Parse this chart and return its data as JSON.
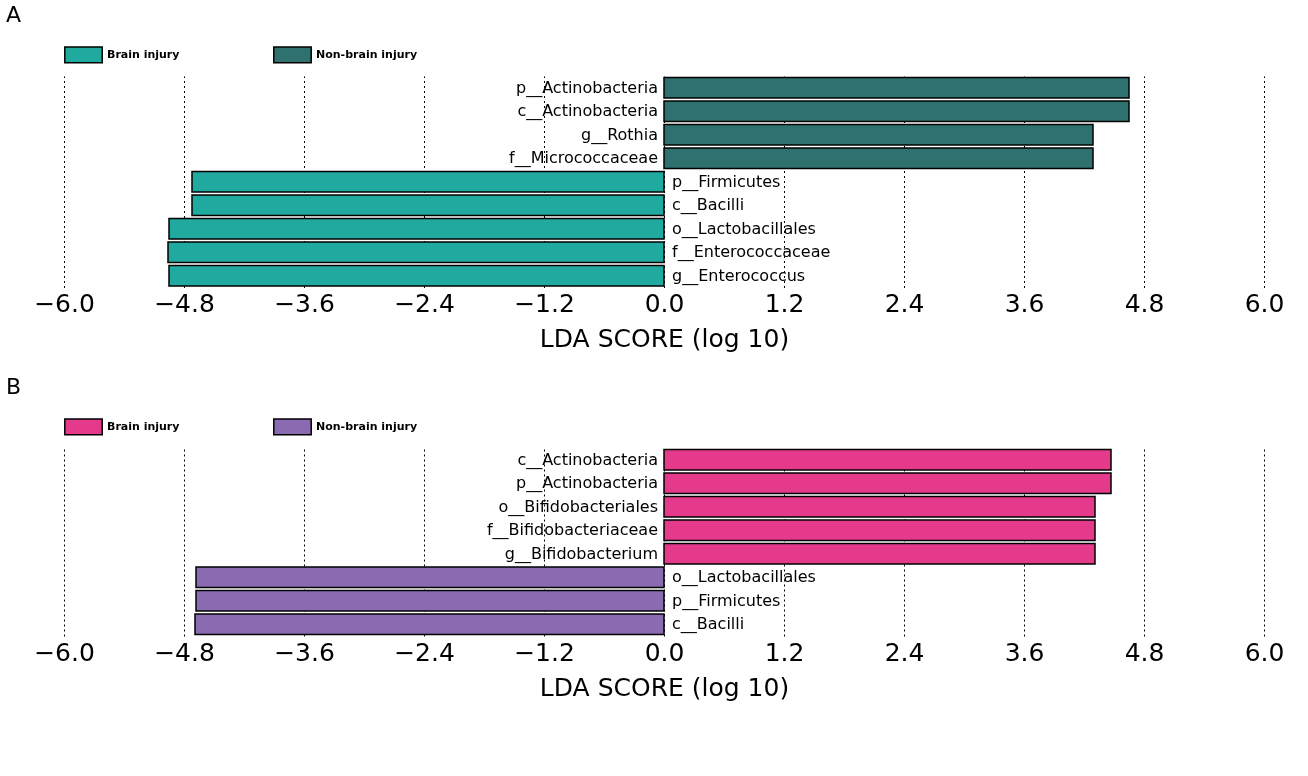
{
  "chart_data": [
    {
      "type": "bar",
      "orientation": "horizontal",
      "title": "A",
      "xlabel": "LDA SCORE (log 10)",
      "categories": [
        "p__Actinobacteria",
        "c__Actinobacteria",
        "g__Rothia",
        "f__Micrococcaceae",
        "p__Firmicutes",
        "c__Bacilli",
        "o__Lactobacillales",
        "f__Enterococcaceae",
        "g__Enterococcus"
      ],
      "series": [
        {
          "name": "Brain injury",
          "color": "#20a99e",
          "values": [
            null,
            null,
            null,
            null,
            -4.72,
            -4.72,
            -4.95,
            -4.96,
            -4.95
          ]
        },
        {
          "name": "Non-brain injury",
          "color": "#2e716e",
          "values": [
            4.65,
            4.65,
            4.29,
            4.29,
            null,
            null,
            null,
            null,
            null
          ]
        }
      ],
      "xlim": [
        -6,
        6
      ],
      "xticks": [
        {
          "value": -6,
          "label": "−6.0"
        },
        {
          "value": -4.8,
          "label": "−4.8"
        },
        {
          "value": -3.6,
          "label": "−3.6"
        },
        {
          "value": -2.4,
          "label": "−2.4"
        },
        {
          "value": -1.2,
          "label": "−1.2"
        },
        {
          "value": 0,
          "label": "0.0"
        },
        {
          "value": 1.2,
          "label": "1.2"
        },
        {
          "value": 2.4,
          "label": "2.4"
        },
        {
          "value": 3.6,
          "label": "3.6"
        },
        {
          "value": 4.8,
          "label": "4.8"
        },
        {
          "value": 6,
          "label": "6.0"
        }
      ],
      "grid": "x",
      "legend": "top left"
    },
    {
      "type": "bar",
      "orientation": "horizontal",
      "title": "B",
      "xlabel": "LDA SCORE (log 10)",
      "categories": [
        "c__Actinobacteria",
        "p__Actinobacteria",
        "o__Bifidobacteriales",
        "f__Bifidobacteriaceae",
        "g__Bifidobacterium",
        "o__Lactobacillales",
        "p__Firmicutes",
        "c__Bacilli"
      ],
      "series": [
        {
          "name": "Brain injury",
          "color": "#e5398c",
          "values": [
            4.47,
            4.47,
            4.31,
            4.31,
            4.31,
            null,
            null,
            null
          ]
        },
        {
          "name": "Non-brain injury",
          "color": "#8a6bb1",
          "values": [
            null,
            null,
            null,
            null,
            null,
            -4.68,
            -4.68,
            -4.69
          ]
        }
      ],
      "xlim": [
        -6,
        6
      ],
      "xticks": [
        {
          "value": -6,
          "label": "−6.0"
        },
        {
          "value": -4.8,
          "label": "−4.8"
        },
        {
          "value": -3.6,
          "label": "−3.6"
        },
        {
          "value": -2.4,
          "label": "−2.4"
        },
        {
          "value": -1.2,
          "label": "−1.2"
        },
        {
          "value": 0,
          "label": "0.0"
        },
        {
          "value": 1.2,
          "label": "1.2"
        },
        {
          "value": 2.4,
          "label": "2.4"
        },
        {
          "value": 3.6,
          "label": "3.6"
        },
        {
          "value": 4.8,
          "label": "4.8"
        },
        {
          "value": 6,
          "label": "6.0"
        }
      ],
      "grid": "x",
      "legend": "top left"
    }
  ]
}
